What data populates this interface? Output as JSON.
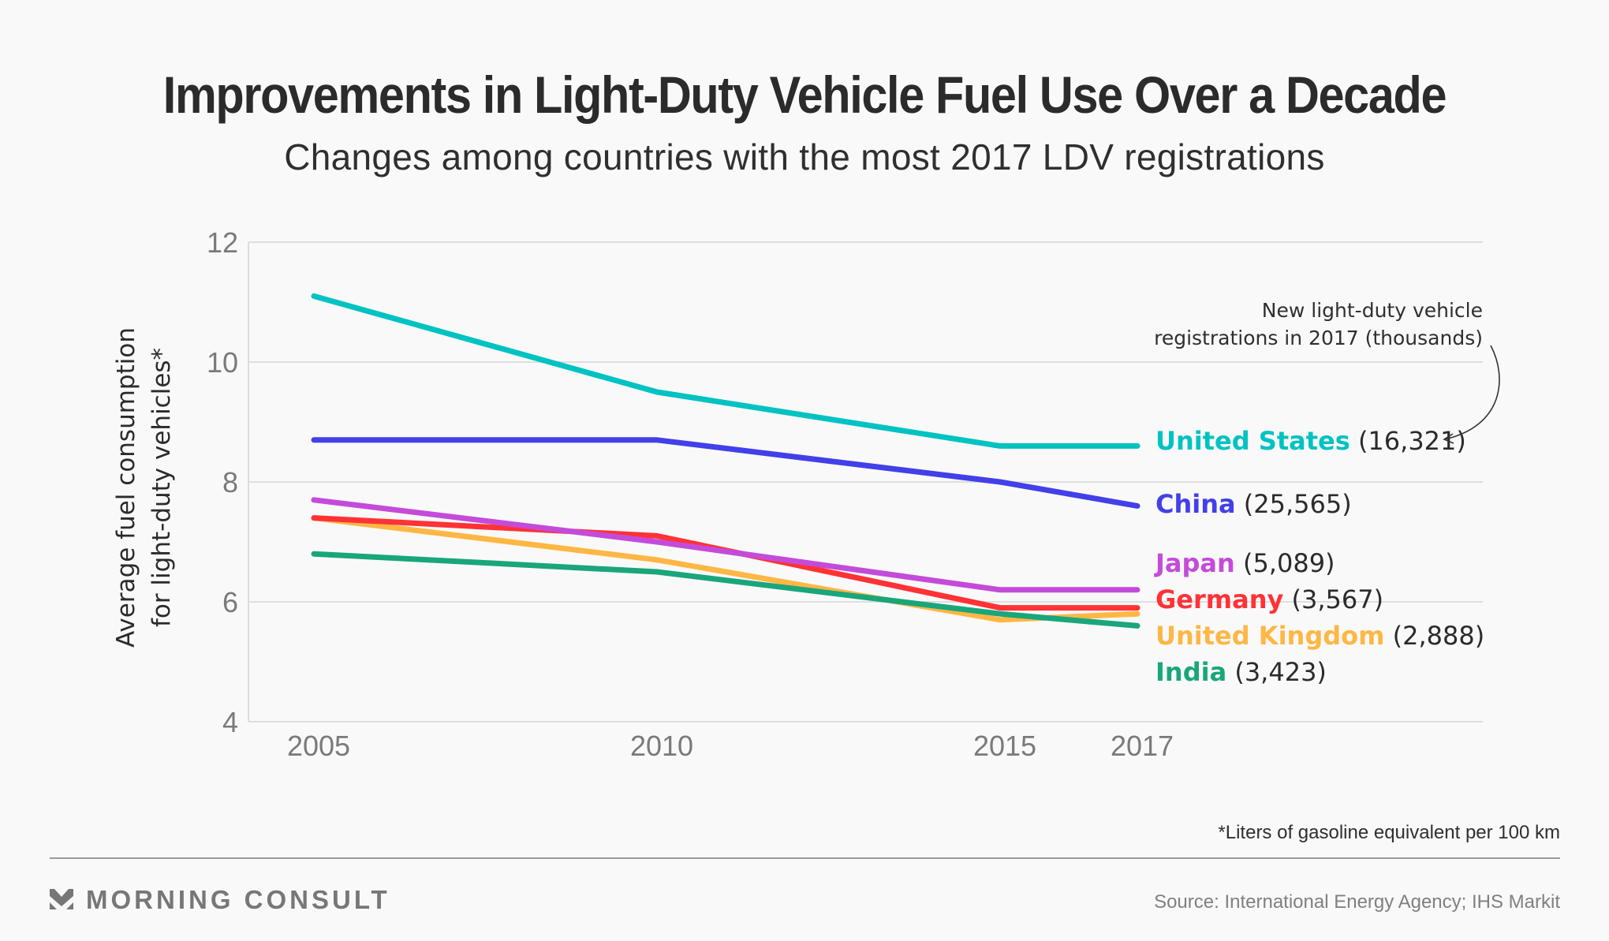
{
  "header": {
    "title": "Improvements in Light-Duty Vehicle Fuel Use Over a Decade",
    "subtitle": "Changes among countries with the most 2017 LDV registrations"
  },
  "chart_data": {
    "type": "line",
    "title": "Improvements in Light-Duty Vehicle Fuel Use Over a Decade",
    "subtitle": "Changes among countries with the most 2017 LDV registrations",
    "xlabel": "",
    "ylabel": [
      "Average fuel consumption",
      "for light-duty vehicles*"
    ],
    "x": [
      2005,
      2010,
      2015,
      2017
    ],
    "x_tick_labels": [
      "2005",
      "2010",
      "2015",
      "2017"
    ],
    "xlim": [
      2001,
      2025
    ],
    "ylim": [
      4,
      12
    ],
    "y_ticks": [
      4,
      6,
      8,
      10,
      12
    ],
    "y_tick_labels": [
      "4",
      "6",
      "8",
      "10",
      "12"
    ],
    "grid": "horizontal",
    "legend": "direct-labels-right",
    "series": [
      {
        "name": "United States",
        "registrations": "16,321",
        "color": "#00C2C2",
        "values": [
          11.1,
          9.5,
          8.6,
          8.6
        ]
      },
      {
        "name": "China",
        "registrations": "25,565",
        "color": "#4240E8",
        "values": [
          8.7,
          8.7,
          8.0,
          7.6
        ]
      },
      {
        "name": "Japan",
        "registrations": "5,089",
        "color": "#C44BDA",
        "values": [
          7.7,
          7.0,
          6.2,
          6.2
        ]
      },
      {
        "name": "Germany",
        "registrations": "3,567",
        "color": "#FF3236",
        "values": [
          7.4,
          7.1,
          5.9,
          5.9
        ]
      },
      {
        "name": "United Kingdom",
        "registrations": "2,888",
        "color": "#FFB744",
        "values": [
          7.4,
          6.7,
          5.7,
          5.8
        ]
      },
      {
        "name": "India",
        "registrations": "3,423",
        "color": "#19A67A",
        "values": [
          6.8,
          6.5,
          5.8,
          5.6
        ]
      }
    ],
    "annotation": [
      "New light-duty vehicle",
      "registrations in 2017 (thousands)"
    ],
    "footnote": "*Liters of gasoline equivalent per 100 km"
  },
  "footer": {
    "footnote": "*Liters of gasoline equivalent per 100 km",
    "brand": "MORNING CONSULT",
    "brand_icon": "morning-consult-logo-icon",
    "source": "Source: International Energy Agency; IHS Markit"
  }
}
